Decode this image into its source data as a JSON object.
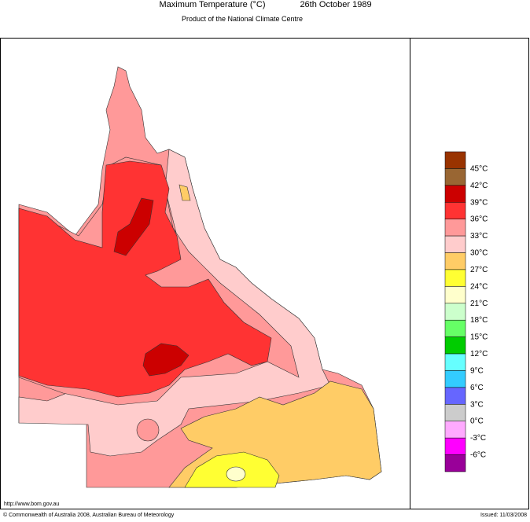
{
  "header": {
    "title": "Maximum Temperature (°C)",
    "date": "26th October 1989",
    "subtitle": "Product of the National Climate Centre"
  },
  "legend": {
    "colors": [
      "#993300",
      "#996633",
      "#cc0000",
      "#ff3333",
      "#ff9999",
      "#ffcccc",
      "#ffcc66",
      "#ffff33",
      "#ffffcc",
      "#ccffcc",
      "#66ff66",
      "#00cc00",
      "#66ffff",
      "#33ccff",
      "#6666ff",
      "#cccccc",
      "#ffaaff",
      "#ff00ff",
      "#990099"
    ],
    "labels": [
      "45°C",
      "42°C",
      "39°C",
      "36°C",
      "33°C",
      "30°C",
      "27°C",
      "24°C",
      "21°C",
      "18°C",
      "15°C",
      "12°C",
      "9°C",
      "6°C",
      "3°C",
      "0°C",
      "-3°C",
      "-6°C"
    ]
  },
  "footer": {
    "url": "http://www.bom.gov.au",
    "copyright": "© Commonwealth of Australia 2008, Australian Bureau of Meteorology",
    "issued": "Issued: 11/03/2008"
  }
}
